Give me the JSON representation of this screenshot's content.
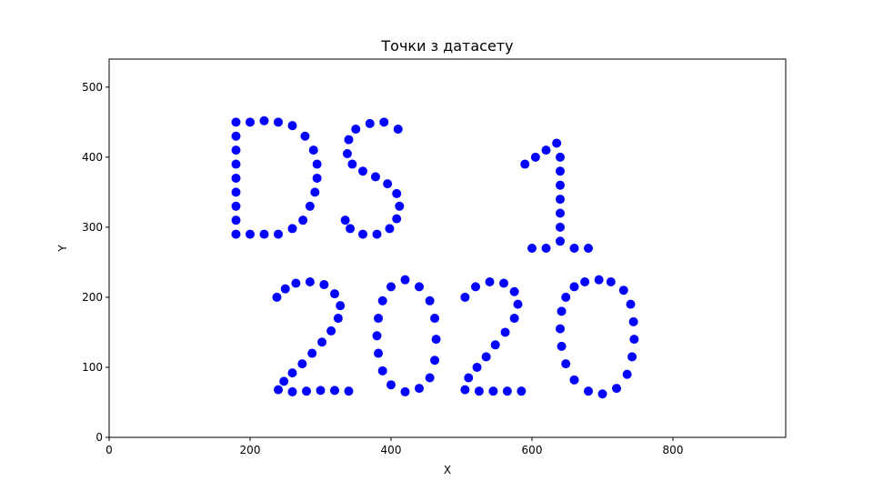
{
  "chart_data": {
    "type": "scatter",
    "title": "Точки з датасету",
    "xlabel": "X",
    "ylabel": "Y",
    "xlim": [
      0,
      960
    ],
    "ylim": [
      0,
      540
    ],
    "xticks": [
      0,
      200,
      400,
      600,
      800
    ],
    "yticks": [
      0,
      100,
      200,
      300,
      400,
      500
    ],
    "grid": false,
    "marker_color": "#0000ff",
    "series": [
      {
        "points": [
          [
            180,
            290
          ],
          [
            180,
            310
          ],
          [
            180,
            330
          ],
          [
            180,
            350
          ],
          [
            180,
            370
          ],
          [
            180,
            390
          ],
          [
            180,
            410
          ],
          [
            180,
            430
          ],
          [
            180,
            450
          ],
          [
            200,
            450
          ],
          [
            220,
            452
          ],
          [
            240,
            450
          ],
          [
            260,
            445
          ],
          [
            278,
            430
          ],
          [
            290,
            410
          ],
          [
            295,
            390
          ],
          [
            295,
            370
          ],
          [
            292,
            350
          ],
          [
            285,
            330
          ],
          [
            275,
            310
          ],
          [
            260,
            298
          ],
          [
            240,
            290
          ],
          [
            220,
            290
          ],
          [
            200,
            290
          ],
          [
            410,
            440
          ],
          [
            390,
            450
          ],
          [
            370,
            448
          ],
          [
            350,
            440
          ],
          [
            340,
            425
          ],
          [
            338,
            405
          ],
          [
            345,
            390
          ],
          [
            360,
            380
          ],
          [
            378,
            372
          ],
          [
            395,
            362
          ],
          [
            408,
            348
          ],
          [
            412,
            330
          ],
          [
            408,
            312
          ],
          [
            398,
            298
          ],
          [
            380,
            290
          ],
          [
            360,
            290
          ],
          [
            342,
            298
          ],
          [
            335,
            310
          ],
          [
            590,
            390
          ],
          [
            605,
            400
          ],
          [
            620,
            410
          ],
          [
            635,
            420
          ],
          [
            640,
            400
          ],
          [
            640,
            380
          ],
          [
            640,
            360
          ],
          [
            640,
            340
          ],
          [
            640,
            320
          ],
          [
            640,
            300
          ],
          [
            640,
            280
          ],
          [
            600,
            270
          ],
          [
            620,
            270
          ],
          [
            660,
            270
          ],
          [
            680,
            270
          ],
          [
            238,
            200
          ],
          [
            250,
            212
          ],
          [
            265,
            220
          ],
          [
            285,
            222
          ],
          [
            305,
            218
          ],
          [
            320,
            205
          ],
          [
            328,
            188
          ],
          [
            325,
            170
          ],
          [
            315,
            152
          ],
          [
            302,
            136
          ],
          [
            288,
            120
          ],
          [
            274,
            105
          ],
          [
            260,
            92
          ],
          [
            248,
            80
          ],
          [
            240,
            68
          ],
          [
            260,
            65
          ],
          [
            280,
            66
          ],
          [
            300,
            67
          ],
          [
            320,
            67
          ],
          [
            340,
            66
          ],
          [
            420,
            225
          ],
          [
            400,
            215
          ],
          [
            388,
            195
          ],
          [
            382,
            170
          ],
          [
            380,
            145
          ],
          [
            382,
            120
          ],
          [
            388,
            95
          ],
          [
            400,
            75
          ],
          [
            420,
            65
          ],
          [
            440,
            70
          ],
          [
            455,
            85
          ],
          [
            462,
            110
          ],
          [
            464,
            140
          ],
          [
            462,
            170
          ],
          [
            455,
            195
          ],
          [
            440,
            215
          ],
          [
            505,
            200
          ],
          [
            520,
            215
          ],
          [
            540,
            222
          ],
          [
            560,
            220
          ],
          [
            575,
            208
          ],
          [
            580,
            190
          ],
          [
            575,
            170
          ],
          [
            562,
            150
          ],
          [
            548,
            132
          ],
          [
            535,
            115
          ],
          [
            522,
            100
          ],
          [
            510,
            85
          ],
          [
            505,
            68
          ],
          [
            525,
            66
          ],
          [
            545,
            66
          ],
          [
            565,
            66
          ],
          [
            585,
            66
          ],
          [
            695,
            225
          ],
          [
            675,
            222
          ],
          [
            660,
            215
          ],
          [
            648,
            200
          ],
          [
            642,
            180
          ],
          [
            640,
            155
          ],
          [
            642,
            130
          ],
          [
            648,
            105
          ],
          [
            660,
            82
          ],
          [
            680,
            66
          ],
          [
            700,
            62
          ],
          [
            720,
            70
          ],
          [
            735,
            90
          ],
          [
            742,
            115
          ],
          [
            745,
            140
          ],
          [
            744,
            165
          ],
          [
            740,
            190
          ],
          [
            730,
            210
          ],
          [
            712,
            222
          ]
        ]
      }
    ]
  }
}
